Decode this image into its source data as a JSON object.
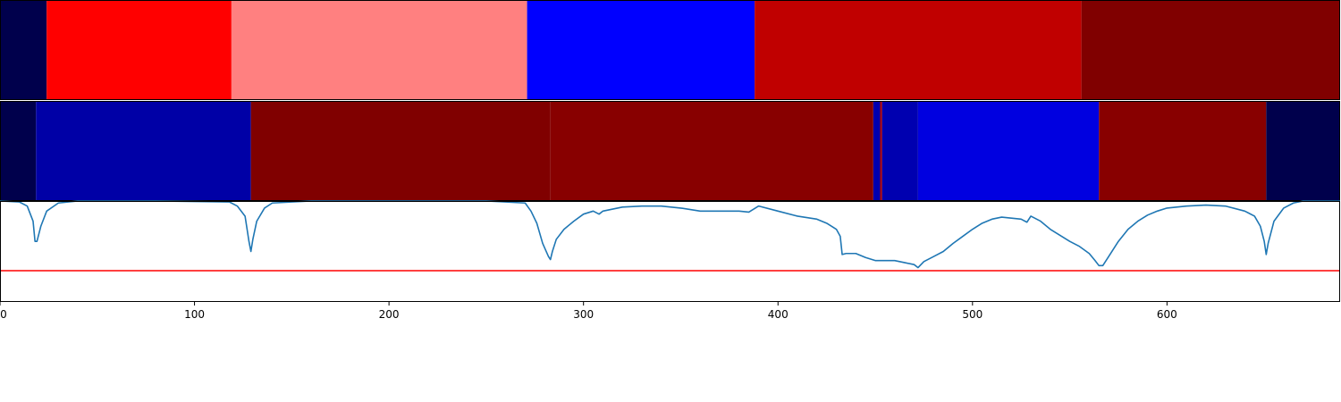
{
  "chart_data": [
    {
      "type": "heatmap",
      "panel": "top-band",
      "xlim": [
        0,
        689
      ],
      "segments": [
        {
          "start": 0,
          "end": 24,
          "color": "#00004c"
        },
        {
          "start": 24,
          "end": 119,
          "color": "#ff0000"
        },
        {
          "start": 119,
          "end": 271,
          "color": "#ff8080"
        },
        {
          "start": 271,
          "end": 388,
          "color": "#0000ff"
        },
        {
          "start": 388,
          "end": 556,
          "color": "#c00000"
        },
        {
          "start": 556,
          "end": 689,
          "color": "#800000"
        }
      ]
    },
    {
      "type": "heatmap",
      "panel": "middle-band",
      "xlim": [
        0,
        689
      ],
      "segments": [
        {
          "start": 0,
          "end": 18.5,
          "color": "#00004c"
        },
        {
          "start": 18.5,
          "end": 129,
          "color": "#0000a6"
        },
        {
          "start": 129,
          "end": 283,
          "color": "#800000"
        },
        {
          "start": 283,
          "end": 449,
          "color": "#880000"
        },
        {
          "start": 449,
          "end": 452.5,
          "color": "#0000b0"
        },
        {
          "start": 452.5,
          "end": 453.5,
          "color": "#b00000"
        },
        {
          "start": 453.5,
          "end": 472,
          "color": "#0000b0"
        },
        {
          "start": 472,
          "end": 565,
          "color": "#0000e0"
        },
        {
          "start": 565,
          "end": 651,
          "color": "#880000"
        },
        {
          "start": 651,
          "end": 689,
          "color": "#00004c"
        }
      ]
    },
    {
      "type": "line",
      "panel": "bottom-plot",
      "xlim": [
        0,
        689
      ],
      "ylim": [
        0,
        1
      ],
      "line_color": "#1f77b4",
      "threshold": 0.31,
      "threshold_color": "#ff0000",
      "x_ticks": [
        0,
        100,
        200,
        300,
        400,
        500,
        600
      ],
      "x_tick_labels": [
        "0",
        "100",
        "200",
        "300",
        "400",
        "500",
        "600"
      ],
      "series": [
        {
          "x": [
            0,
            10,
            14,
            17,
            18,
            19,
            21,
            24,
            30,
            40,
            80,
            118,
            122,
            126,
            128,
            129,
            130,
            132,
            136,
            140,
            160,
            200,
            250,
            270,
            273,
            276,
            279,
            282,
            283,
            284,
            286,
            290,
            295,
            300,
            305,
            308,
            310,
            315,
            320,
            330,
            340,
            350,
            360,
            370,
            380,
            385,
            390,
            400,
            410,
            420,
            425,
            430,
            432,
            433,
            435,
            440,
            445,
            450,
            455,
            460,
            465,
            470,
            472,
            475,
            480,
            485,
            490,
            495,
            500,
            505,
            510,
            515,
            520,
            525,
            528,
            530,
            535,
            540,
            545,
            550,
            555,
            560,
            563,
            565,
            567,
            570,
            575,
            580,
            585,
            590,
            595,
            600,
            610,
            620,
            630,
            640,
            645,
            648,
            650,
            651,
            652,
            655,
            660,
            665,
            670,
            680,
            689
          ],
          "y": [
            1.0,
            0.99,
            0.95,
            0.8,
            0.6,
            0.6,
            0.75,
            0.9,
            0.98,
            1.0,
            1.0,
            0.99,
            0.95,
            0.85,
            0.6,
            0.5,
            0.62,
            0.8,
            0.93,
            0.98,
            1.0,
            1.0,
            1.0,
            0.98,
            0.9,
            0.78,
            0.58,
            0.45,
            0.42,
            0.5,
            0.62,
            0.72,
            0.8,
            0.87,
            0.9,
            0.87,
            0.9,
            0.92,
            0.94,
            0.95,
            0.95,
            0.93,
            0.9,
            0.9,
            0.9,
            0.89,
            0.95,
            0.9,
            0.85,
            0.82,
            0.78,
            0.72,
            0.65,
            0.47,
            0.48,
            0.48,
            0.44,
            0.41,
            0.41,
            0.41,
            0.39,
            0.37,
            0.34,
            0.4,
            0.45,
            0.5,
            0.58,
            0.65,
            0.72,
            0.78,
            0.82,
            0.84,
            0.83,
            0.82,
            0.79,
            0.85,
            0.8,
            0.72,
            0.66,
            0.6,
            0.55,
            0.48,
            0.41,
            0.36,
            0.36,
            0.45,
            0.6,
            0.72,
            0.8,
            0.86,
            0.9,
            0.93,
            0.95,
            0.96,
            0.95,
            0.9,
            0.85,
            0.75,
            0.6,
            0.47,
            0.58,
            0.8,
            0.93,
            0.98,
            1.0,
            1.0,
            1.0
          ]
        }
      ]
    }
  ]
}
